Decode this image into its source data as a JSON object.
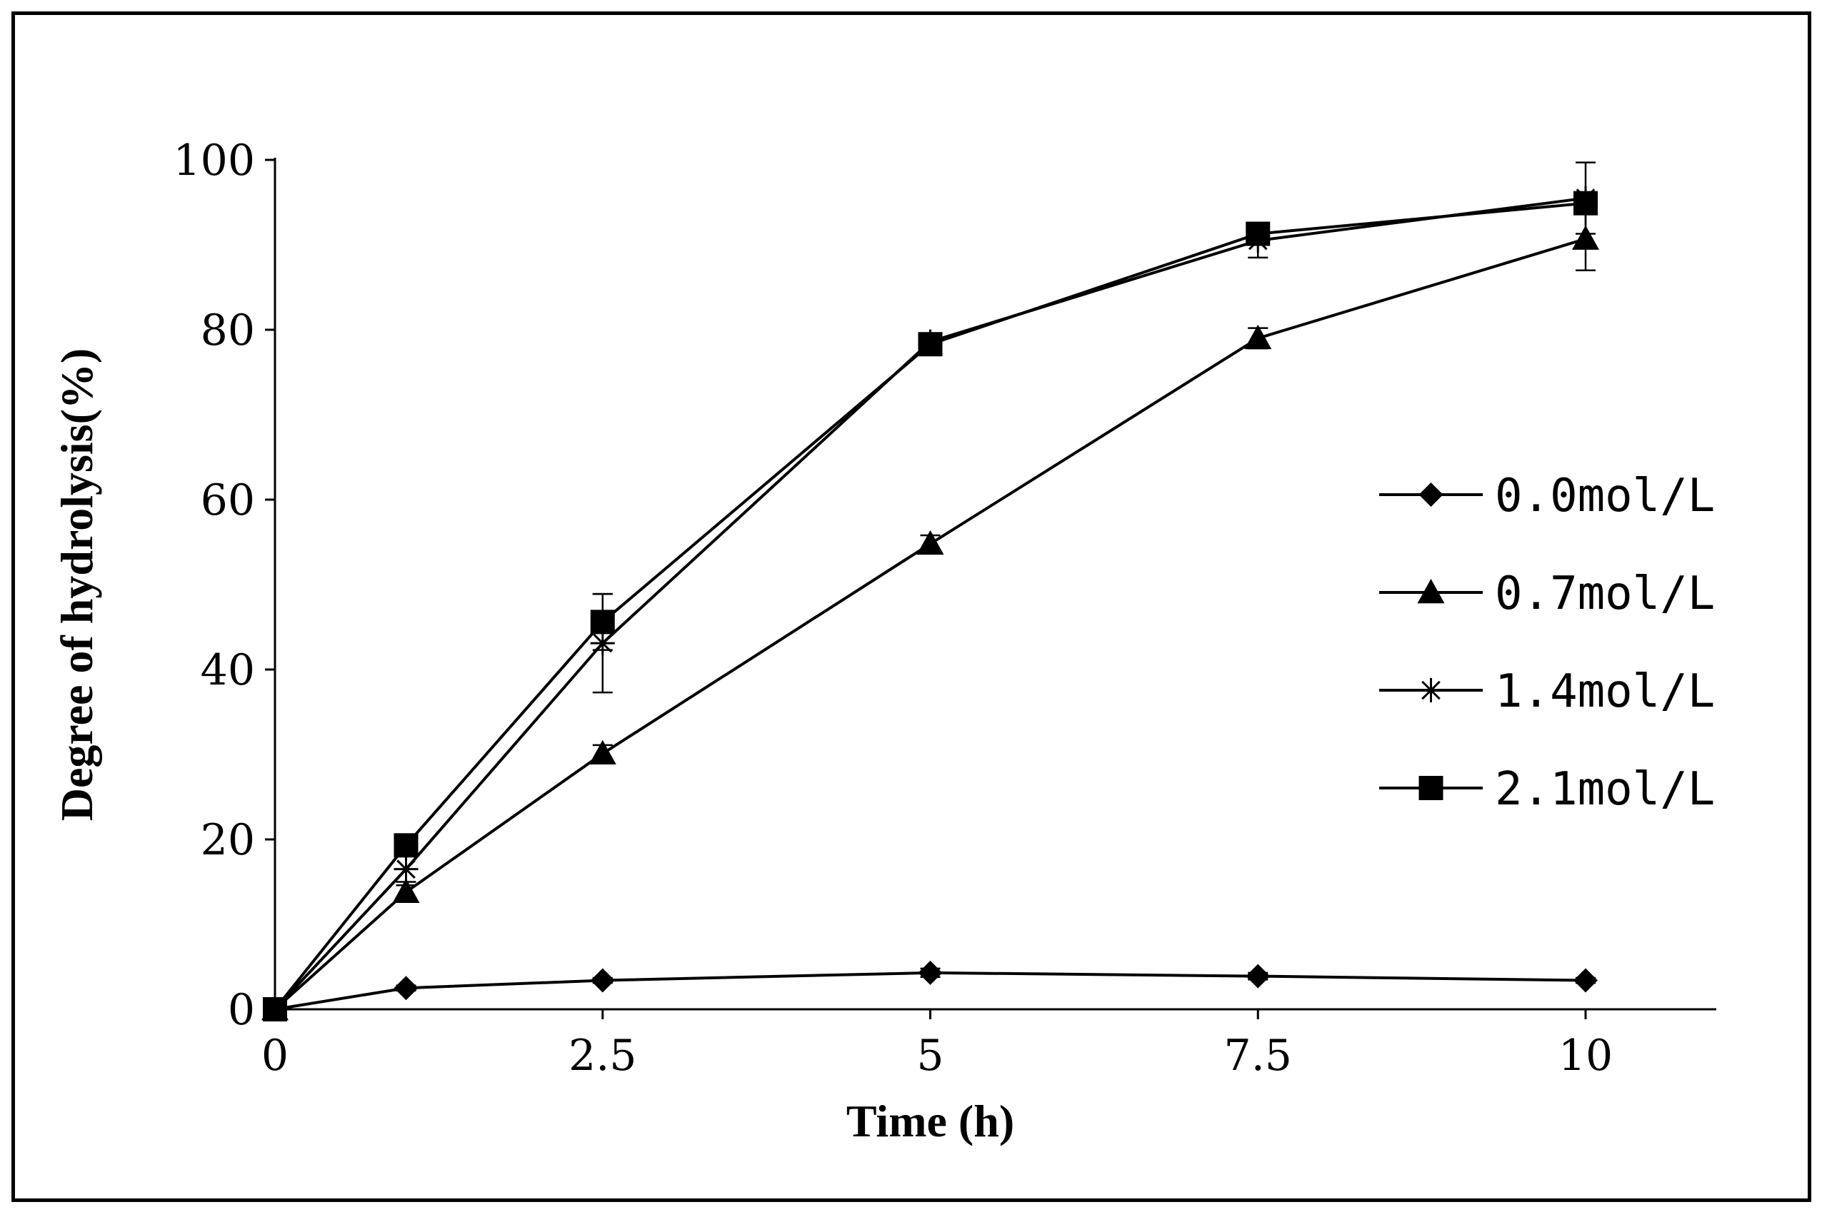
{
  "chart_data": {
    "type": "line",
    "title": "",
    "xlabel": "Time (h)",
    "ylabel": "Degree of  hydrolysis(%)",
    "xlim": [
      0,
      11
    ],
    "ylim": [
      0,
      100
    ],
    "x_ticks": [
      0,
      2.5,
      5,
      7.5,
      10
    ],
    "x_tick_labels": [
      "0",
      "2.5",
      "5",
      "7.5",
      "10"
    ],
    "y_ticks": [
      0,
      20,
      40,
      60,
      80,
      100
    ],
    "y_tick_labels": [
      "0",
      "20",
      "40",
      "60",
      "80",
      "100"
    ],
    "grid": false,
    "legend_position": "right",
    "x": [
      0,
      1,
      2.5,
      5,
      7.5,
      10
    ],
    "series": [
      {
        "name": "0.0mol/L",
        "marker": "diamond",
        "values": [
          0,
          2.5,
          3.4,
          4.3,
          3.9,
          3.4
        ],
        "errors": [
          0,
          0.3,
          0.3,
          0.5,
          0.4,
          0.3
        ]
      },
      {
        "name": "0.7mol/L",
        "marker": "triangle",
        "values": [
          0,
          13.8,
          30.1,
          54.8,
          79.0,
          90.7
        ],
        "errors": [
          0,
          0.8,
          1.0,
          1.0,
          1.2,
          3.7
        ]
      },
      {
        "name": "1.4mol/L",
        "marker": "asterisk",
        "values": [
          0,
          16.5,
          43.1,
          78.6,
          90.5,
          95.5
        ],
        "errors": [
          0,
          1.5,
          5.8,
          0.8,
          2.0,
          4.2
        ]
      },
      {
        "name": "2.1mol/L",
        "marker": "square",
        "values": [
          0,
          19.3,
          45.6,
          78.3,
          91.3,
          94.9
        ],
        "errors": [
          0,
          0.8,
          3.3,
          0.8,
          1.0,
          1.0
        ]
      }
    ]
  }
}
